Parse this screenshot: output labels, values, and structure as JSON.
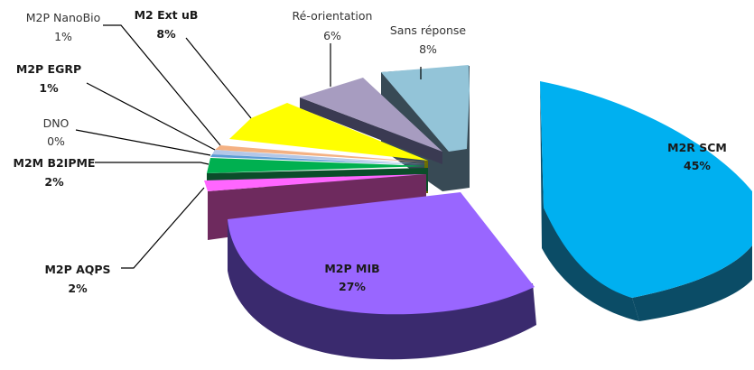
{
  "chart_data": {
    "type": "pie",
    "style": "3d-exploded",
    "title": "",
    "slices": [
      {
        "label": "M2R SCM",
        "value_label": "45%",
        "value": 45,
        "color": "#00b0f0",
        "side_color": "#0b4c66",
        "bold": true
      },
      {
        "label": "M2P MIB",
        "value_label": "27%",
        "value": 27,
        "color": "#9966ff",
        "side_color": "#3a2a6e",
        "bold": true
      },
      {
        "label": "M2P AQPS",
        "value_label": "2%",
        "value": 2,
        "color": "#ff66ff",
        "side_color": "#6e2a5e",
        "bold": true
      },
      {
        "label": "M2M B2IPME",
        "value_label": "2%",
        "value": 2,
        "color": "#00b050",
        "side_color": "#0b4d2a",
        "bold": true
      },
      {
        "label": "DNO",
        "value_label": "0%",
        "value": 0.5,
        "color": "#5b9bd5",
        "side_color": "#2b4b66",
        "bold": false
      },
      {
        "label": "M2P EGRP",
        "value_label": "1%",
        "value": 1,
        "color": "#b4c7e7",
        "side_color": "#55606e",
        "bold": true
      },
      {
        "label": "M2P NanoBio",
        "value_label": "1%",
        "value": 1,
        "color": "#f4b183",
        "side_color": "#6e4a33",
        "bold": false
      },
      {
        "label": "M2 Ext uB",
        "value_label": "8%",
        "value": 8,
        "color": "#ffff00",
        "side_color": "#6b6b00",
        "bold": true
      },
      {
        "label": "Ré-orientation",
        "value_label": "6%",
        "value": 6,
        "color": "#a79cc0",
        "side_color": "#3a3a52",
        "bold": false
      },
      {
        "label": "Sans réponse",
        "value_label": "8%",
        "value": 8,
        "color": "#93c4d8",
        "side_color": "#384a55",
        "bold": false
      }
    ]
  }
}
